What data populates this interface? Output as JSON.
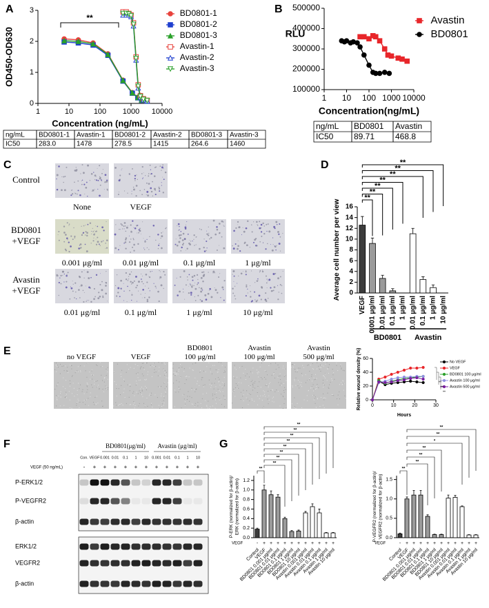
{
  "panel_labels": [
    "A",
    "B",
    "C",
    "D",
    "E",
    "F",
    "G"
  ],
  "chart_data": [
    {
      "type": "line",
      "xlabel": "Concentration (ng/mL)",
      "ylabel": "OD450-OD630",
      "xscale": "log",
      "xlim": [
        1,
        10000
      ],
      "xticks": [
        1,
        10,
        100,
        1000,
        10000
      ],
      "ylim": [
        0,
        3
      ],
      "yticks": [
        0,
        1,
        2,
        3
      ],
      "legend": "right",
      "annotation": "**",
      "series": [
        {
          "name": "BD0801-1",
          "color": "#e8423c",
          "marker": "circle",
          "x": [
            7,
            20,
            60,
            180,
            550,
            1100,
            1650,
            2200,
            3300
          ],
          "values": [
            2.08,
            2.05,
            1.95,
            1.6,
            0.75,
            0.35,
            0.2,
            0.12,
            0.08
          ]
        },
        {
          "name": "BD0801-2",
          "color": "#1f3fcf",
          "marker": "square",
          "x": [
            7,
            20,
            60,
            180,
            550,
            1100,
            1650,
            2200,
            3300
          ],
          "values": [
            1.98,
            1.95,
            1.88,
            1.55,
            0.72,
            0.33,
            0.18,
            0.1,
            0.07
          ]
        },
        {
          "name": "BD0801-3",
          "color": "#2aa02a",
          "marker": "triangle",
          "x": [
            7,
            20,
            60,
            180,
            550,
            1100,
            1650,
            2200,
            3300
          ],
          "values": [
            2.02,
            2.0,
            1.92,
            1.58,
            0.74,
            0.34,
            0.19,
            0.11,
            0.08
          ]
        },
        {
          "name": "Avastin-1",
          "color": "#e8423c",
          "marker": "open-square",
          "x": [
            550,
            700,
            850,
            1000,
            1200,
            1450,
            1700,
            2000,
            2500,
            3300
          ],
          "values": [
            2.95,
            2.95,
            2.9,
            2.85,
            2.6,
            1.5,
            0.6,
            0.25,
            0.15,
            0.1
          ]
        },
        {
          "name": "Avastin-2",
          "color": "#1f3fcf",
          "marker": "open-triangle",
          "x": [
            550,
            700,
            850,
            1000,
            1200,
            1450,
            1700,
            2000,
            2500,
            3300
          ],
          "values": [
            2.85,
            2.85,
            2.85,
            2.8,
            2.5,
            1.4,
            0.5,
            0.2,
            0.12,
            0.08
          ]
        },
        {
          "name": "Avastin-3",
          "color": "#2aa02a",
          "marker": "open-triangle-down",
          "x": [
            550,
            700,
            850,
            1000,
            1200,
            1450,
            1700,
            2000,
            2500,
            3300
          ],
          "values": [
            2.9,
            2.9,
            2.88,
            2.82,
            2.55,
            1.45,
            0.55,
            0.22,
            0.13,
            0.09
          ]
        }
      ]
    },
    {
      "type": "line",
      "xlabel": "Concentration(ng/mL)",
      "ylabel": "RLU",
      "xscale": "log",
      "xlim": [
        1,
        10000
      ],
      "xticks": [
        1,
        10,
        100,
        1000,
        10000
      ],
      "ylim": [
        100000,
        500000
      ],
      "yticks": [
        100000,
        200000,
        300000,
        400000,
        500000
      ],
      "legend": "right",
      "series": [
        {
          "name": "Avastin",
          "color": "#e8262a",
          "marker": "square",
          "x": [
            40,
            60,
            100,
            150,
            200,
            300,
            500,
            700,
            1000,
            2000,
            3000,
            5000
          ],
          "values": [
            360000,
            360000,
            350000,
            365000,
            360000,
            340000,
            300000,
            270000,
            265000,
            255000,
            250000,
            240000
          ]
        },
        {
          "name": "BD0801",
          "color": "#000000",
          "marker": "circle",
          "x": [
            6,
            8,
            10,
            15,
            20,
            30,
            40,
            60,
            100,
            150,
            200,
            300,
            500,
            800
          ],
          "values": [
            340000,
            335000,
            340000,
            330000,
            335000,
            330000,
            310000,
            270000,
            220000,
            185000,
            180000,
            180000,
            185000,
            180000
          ]
        }
      ]
    },
    {
      "type": "bar",
      "ylabel": "Average cell number per view",
      "categories": [
        "VEGF",
        "0.001 μg/ml",
        "0.01 μg/ml",
        "0.1 μg/ml",
        "1 μg/ml",
        "0.01 μg/ml",
        "0.1 μg/ml",
        "1 μg/ml",
        "10 μg/ml"
      ],
      "values": [
        12.6,
        9.2,
        2.7,
        0.4,
        0,
        11,
        2.5,
        1,
        0
      ],
      "errors": [
        1.6,
        1,
        0.6,
        0.4,
        0,
        1,
        0.5,
        0.5,
        0
      ],
      "colors": [
        "#3c3c3c",
        "#9b9b9b",
        "#9b9b9b",
        "#9b9b9b",
        "#9b9b9b",
        "#ffffff",
        "#ffffff",
        "#ffffff",
        "#ffffff"
      ],
      "group_labels": [
        "BD0801",
        "Avastin"
      ],
      "significance": [
        "**",
        "**",
        "**",
        "**",
        "**",
        "**",
        "**"
      ],
      "ylim": [
        0,
        16
      ],
      "yticks": [
        0,
        2,
        4,
        6,
        8,
        10,
        12,
        14,
        16
      ]
    },
    {
      "type": "line",
      "xlabel": "Hours",
      "ylabel": "Relative wound density (%)",
      "x": [
        0,
        3,
        6,
        9,
        12,
        15,
        18,
        21,
        24
      ],
      "xlim": [
        0,
        30
      ],
      "xticks": [
        0,
        10,
        20,
        30
      ],
      "ylim": [
        0,
        60
      ],
      "yticks": [
        0,
        20,
        40,
        60
      ],
      "legend": "right",
      "annotations": [
        "**",
        "**",
        "**"
      ],
      "series": [
        {
          "name": "No VEGF",
          "color": "#000000",
          "marker": "circle",
          "values": [
            0,
            27,
            22,
            24,
            25,
            26,
            27,
            26,
            25
          ]
        },
        {
          "name": "VEGF",
          "color": "#e8262a",
          "marker": "circle",
          "values": [
            0,
            30,
            33,
            37,
            40,
            43,
            46,
            46,
            47
          ]
        },
        {
          "name": "BD0801 100 μg/ml",
          "color": "#2aa02a",
          "marker": "circle",
          "values": [
            0,
            28,
            24,
            27,
            29,
            31,
            32,
            33,
            34
          ]
        },
        {
          "name": "Avastin 100 μg/ml",
          "color": "#8f8fe0",
          "marker": "circle",
          "values": [
            0,
            25,
            27,
            30,
            32,
            33,
            33,
            34,
            34
          ]
        },
        {
          "name": "Avastin 500 μg/ml",
          "color": "#7a1fa0",
          "marker": "circle",
          "values": [
            0,
            26,
            25,
            26,
            28,
            29,
            31,
            32,
            30
          ]
        }
      ]
    },
    {
      "type": "bar",
      "ylabel": [
        "P-ERK (normalized for β-actin)/",
        "ERK (normalized for β-actin)"
      ],
      "categories": [
        "Control",
        "VEGF",
        "BD0801 0.001 μg/ml",
        "BD0801 0.01 μg/ml",
        "BD0801 0.1 μg/ml",
        "BD0801 1 μg/ml",
        "BD0801 10 μg/ml",
        "Avastin 0.001 μg/ml",
        "Avastin 0.01 μg/ml",
        "Avastin 0.1 μg/ml",
        "Avastin 1 μg/ml",
        "Avastin 10 μg/ml"
      ],
      "values": [
        0.18,
        1.0,
        0.9,
        0.85,
        0.4,
        0.13,
        0.14,
        0.52,
        0.65,
        0.52,
        0.1,
        0.1
      ],
      "errors": [
        0.02,
        0.1,
        0.08,
        0.05,
        0.03,
        0.02,
        0.02,
        0.03,
        0.06,
        0.08,
        0.01,
        0.01
      ],
      "colors": [
        "#3c3c3c",
        "#9b9b9b",
        "#9b9b9b",
        "#9b9b9b",
        "#9b9b9b",
        "#9b9b9b",
        "#9b9b9b",
        "#ffffff",
        "#ffffff",
        "#ffffff",
        "#ffffff",
        "#ffffff"
      ],
      "treatment_label": "VEGF",
      "treatment": [
        "-",
        "+",
        "+",
        "+",
        "+",
        "+",
        "+",
        "+",
        "+",
        "+",
        "+",
        "+"
      ],
      "significance": [
        "**",
        "**",
        "**",
        "**",
        "**",
        "**",
        "**",
        "**",
        "**"
      ],
      "ylim": [
        0,
        1.3
      ],
      "yticks": [
        {
          "value": 0,
          "label": "0.0"
        },
        0.2,
        0.4,
        0.6,
        0.8,
        {
          "value": 1,
          "label": "1.0"
        },
        1.2
      ]
    },
    {
      "type": "bar",
      "ylabel": [
        "P-VEGFR2 (normalized for β-actin)/",
        "VEGFR2 (normalized for β-actin)"
      ],
      "categories": [
        "Control",
        "VEGF",
        "BD0801 0.001 μg/ml",
        "BD0801 0.01 μg/ml",
        "BD0801 0.1 μg/ml",
        "BD0801 1 μg/ml",
        "BD0801 10 μg/ml",
        "Avastin 0.001 μg/ml",
        "Avastin 0.01 μg/ml",
        "Avastin 0.1 μg/ml",
        "Avastin 1 μg/ml",
        "Avastin 10 μg/ml"
      ],
      "values": [
        0.1,
        1.0,
        1.1,
        1.1,
        0.55,
        0.08,
        0.08,
        1.02,
        1.04,
        0.8,
        0.07,
        0.07
      ],
      "errors": [
        0.02,
        0.05,
        0.12,
        0.12,
        0.04,
        0.01,
        0.01,
        0.08,
        0.05,
        0.02,
        0.01,
        0.01
      ],
      "colors": [
        "#3c3c3c",
        "#9b9b9b",
        "#9b9b9b",
        "#9b9b9b",
        "#9b9b9b",
        "#9b9b9b",
        "#9b9b9b",
        "#ffffff",
        "#ffffff",
        "#ffffff",
        "#ffffff",
        "#ffffff"
      ],
      "treatment_label": "VEGF",
      "treatment": [
        "-",
        "+",
        "+",
        "+",
        "+",
        "+",
        "+",
        "+",
        "+",
        "+",
        "+",
        "+"
      ],
      "significance": [
        "**",
        "**",
        "**",
        "**",
        "*",
        "**",
        "**"
      ],
      "ylim": [
        0,
        1.6
      ],
      "yticks": [
        {
          "value": 0,
          "label": "0.0"
        },
        0.5,
        {
          "value": 1,
          "label": "1.0"
        },
        1.5
      ]
    }
  ],
  "ic50_tables": [
    {
      "header": [
        "ng/mL",
        "BD0801-1",
        "Avastin-1",
        "BD0801-2",
        "Avastin-2",
        "BD0801-3",
        "Avastin-3"
      ],
      "rows": [
        [
          "IC50",
          "283.0",
          "1478",
          "278.5",
          "1415",
          "264.6",
          "1460"
        ]
      ]
    },
    {
      "header": [
        "ng/mL",
        "BD0801",
        "Avastin"
      ],
      "rows": [
        [
          "IC50",
          "89.71",
          "468.8"
        ]
      ]
    }
  ],
  "cell_migration": {
    "rows": [
      {
        "label": [
          "Control"
        ],
        "images": [
          "None",
          "VEGF"
        ]
      },
      {
        "label": [
          "BD0801",
          "+VEGF"
        ],
        "images": [
          "0.001 μg/ml",
          "0.01 μg/ml",
          "0.1 μg/ml",
          "1 μg/ml"
        ]
      },
      {
        "label": [
          "Avastin",
          "+VEGF"
        ],
        "images": [
          "0.01 μg/ml",
          "0.1 μg/ml",
          "1 μg/ml",
          "10 μg/ml"
        ]
      }
    ]
  },
  "wound_images": [
    [
      "no VEGF"
    ],
    [
      "VEGF"
    ],
    [
      "BD0801",
      "100 μg/ml"
    ],
    [
      "Avastin",
      "100 μg/ml"
    ],
    [
      "Avastin",
      "500 μg/ml"
    ]
  ],
  "western_blot": {
    "group_labels": [
      "BD0801(μg/ml)",
      "Avastin (μg/ml)"
    ],
    "lanes": [
      "Con.",
      "VEGF",
      "0.001",
      "0.01",
      "0.1",
      "1",
      "10",
      "0.001",
      "0.01",
      "0.1",
      "1",
      "10"
    ],
    "treatment_label": "VEGF (50 ng/mL)",
    "treatment": [
      "-",
      "+",
      "+",
      "+",
      "+",
      "+",
      "+",
      "+",
      "+",
      "+",
      "+",
      "+"
    ],
    "rows": [
      "P-ERK1/2",
      "P-VEGFR2",
      "β-actin",
      "ERK1/2",
      "VEGFR2",
      "β-actin"
    ]
  }
}
